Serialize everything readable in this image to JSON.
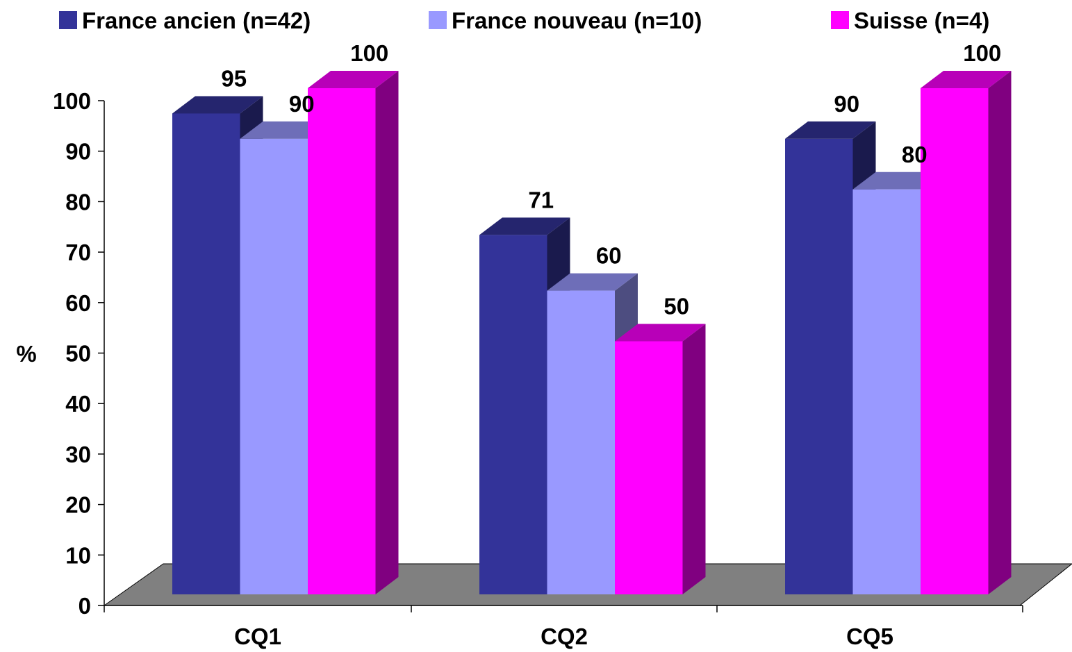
{
  "chart_data": {
    "type": "bar",
    "title": "",
    "xlabel": "",
    "ylabel": "%",
    "ylim": [
      0,
      100
    ],
    "yticks": [
      "0",
      "10",
      "20",
      "30",
      "40",
      "50",
      "60",
      "70",
      "80",
      "90",
      "100"
    ],
    "categories": [
      "CQ1",
      "CQ2",
      "CQ5"
    ],
    "legend_position": "top",
    "three_d": true,
    "series": [
      {
        "name": "France ancien (n=42)",
        "values": [
          95,
          71,
          90
        ],
        "color": "#333399"
      },
      {
        "name": "France nouveau (n=10)",
        "values": [
          90,
          60,
          80
        ],
        "color": "#9999FF"
      },
      {
        "name": "Suisse (n=4)",
        "values": [
          100,
          50,
          100
        ],
        "color": "#FF00FF"
      }
    ],
    "floor_color": "#808080"
  }
}
